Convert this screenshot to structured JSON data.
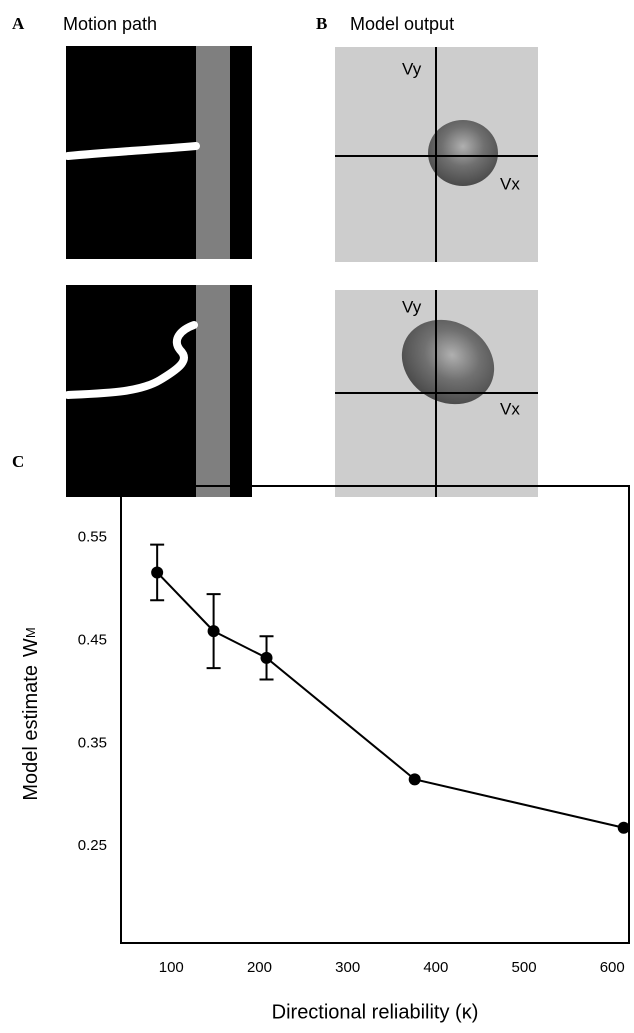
{
  "panel_a": {
    "label": "A",
    "title": "Motion path"
  },
  "panel_b": {
    "label": "B",
    "title": "Model output",
    "axis_y": "Vy",
    "axis_x": "Vx"
  },
  "chart_data": {
    "type": "line",
    "panel_label": "C",
    "x_label": "Directional reliability (κ)",
    "y_label": "Model estimate",
    "y_label_symbol": "W",
    "y_label_subscript": "M",
    "x": [
      84,
      148,
      208,
      376,
      613
    ],
    "series": [
      {
        "name": "Model estimate",
        "color": "#000000",
        "values": [
          0.516,
          0.459,
          0.433,
          0.315,
          0.268
        ],
        "errors": [
          0.027,
          0.036,
          0.021,
          null,
          null
        ]
      }
    ],
    "xlim": [
      43,
      619
    ],
    "xticks": [
      100,
      200,
      300,
      400,
      500,
      600
    ],
    "ylim": [
      0.156,
      0.6
    ],
    "yticks": [
      {
        "value": 0.55,
        "label": "0.55"
      },
      {
        "value": 0.45,
        "label": "0.45"
      },
      {
        "value": 0.35,
        "label": "0.35"
      },
      {
        "value": 0.25,
        "label": "0.25"
      }
    ]
  }
}
